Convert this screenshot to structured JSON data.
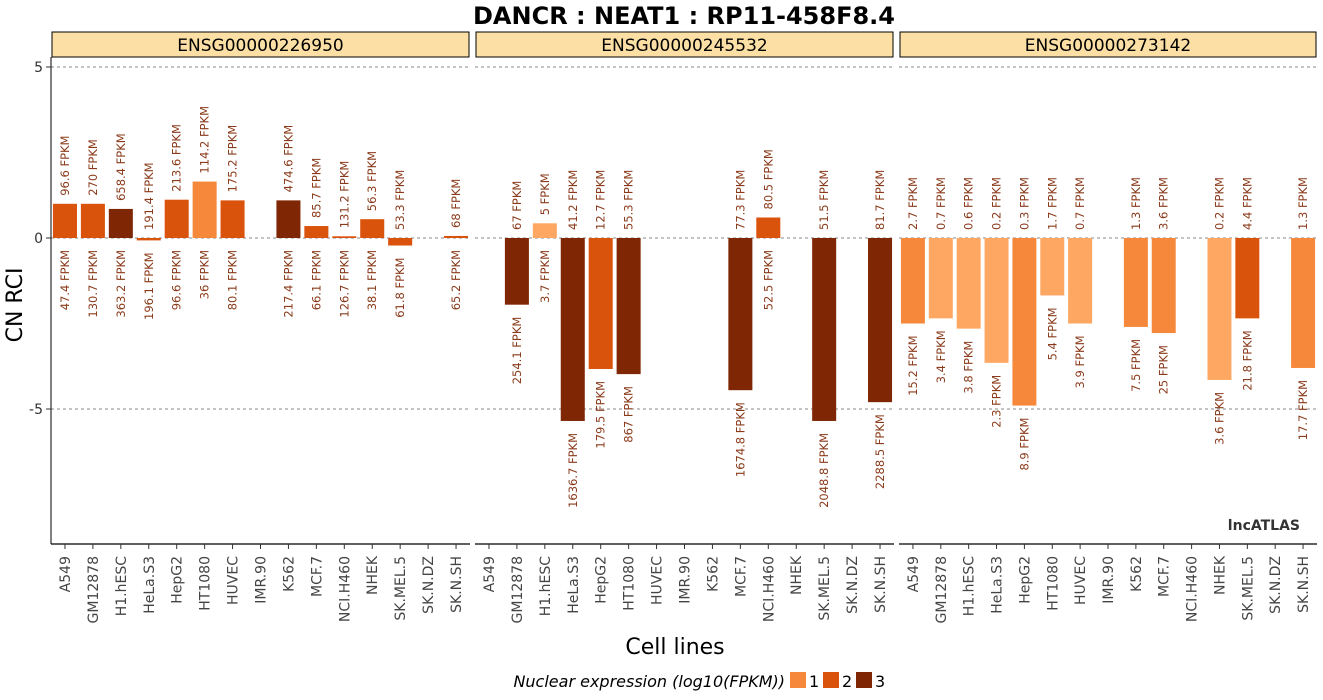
{
  "chart_data": {
    "type": "bar",
    "title": "DANCR : NEAT1 : RP11-458F8.4",
    "xlabel": "Cell lines",
    "ylabel": "CN RCI",
    "ylim": [
      -9,
      6
    ],
    "y_ticks": [
      5,
      0,
      -5
    ],
    "y_tick_labels": [
      "5",
      "0",
      "-5"
    ],
    "reference_lines": [
      5,
      0,
      -5
    ],
    "watermark": "lncATLAS",
    "categories": [
      "A549",
      "GM12878",
      "H1.hESC",
      "HeLa.S3",
      "HepG2",
      "HT1080",
      "HUVEC",
      "IMR.90",
      "K562",
      "MCF.7",
      "NCI.H460",
      "NHEK",
      "SK.MEL.5",
      "SK.N.DZ",
      "SK.N.SH"
    ],
    "colors": {
      "1": "#f5883a",
      "2": "#d9530c",
      "3": "#7f2704",
      "light": "#fda762"
    },
    "legend": {
      "title": "Nuclear expression (log10(FPKM))",
      "position": "bottom",
      "entries": [
        {
          "label": "1",
          "color": "#f5883a"
        },
        {
          "label": "2",
          "color": "#d9530c"
        },
        {
          "label": "3",
          "color": "#7f2704"
        }
      ]
    },
    "panels": [
      {
        "name": "ENSG00000226950",
        "bars": [
          {
            "cell": "A549",
            "value": 1.0,
            "level": "2",
            "top_label": "96.6 FPKM",
            "bottom_label": "47.4 FPKM"
          },
          {
            "cell": "GM12878",
            "value": 1.0,
            "level": "2",
            "top_label": "270 FPKM",
            "bottom_label": "130.7 FPKM"
          },
          {
            "cell": "H1.hESC",
            "value": 0.85,
            "level": "3",
            "top_label": "658.4 FPKM",
            "bottom_label": "363.2 FPKM"
          },
          {
            "cell": "HeLa.S3",
            "value": -0.07,
            "level": "2",
            "top_label": "191.4 FPKM",
            "bottom_label": "196.1 FPKM"
          },
          {
            "cell": "HepG2",
            "value": 1.12,
            "level": "2",
            "top_label": "213.6 FPKM",
            "bottom_label": "96.6 FPKM"
          },
          {
            "cell": "HT1080",
            "value": 1.65,
            "level": "1",
            "top_label": "114.2 FPKM",
            "bottom_label": "36 FPKM"
          },
          {
            "cell": "HUVEC",
            "value": 1.1,
            "level": "2",
            "top_label": "175.2 FPKM",
            "bottom_label": "80.1 FPKM"
          },
          {
            "cell": "IMR.90",
            "value": null
          },
          {
            "cell": "K562",
            "value": 1.1,
            "level": "3",
            "top_label": "474.6 FPKM",
            "bottom_label": "217.4 FPKM"
          },
          {
            "cell": "MCF.7",
            "value": 0.35,
            "level": "2",
            "top_label": "85.7 FPKM",
            "bottom_label": "66.1 FPKM"
          },
          {
            "cell": "NCI.H460",
            "value": 0.05,
            "level": "2",
            "top_label": "131.2 FPKM",
            "bottom_label": "126.7 FPKM"
          },
          {
            "cell": "NHEK",
            "value": 0.55,
            "level": "2",
            "top_label": "56.3 FPKM",
            "bottom_label": "38.1 FPKM"
          },
          {
            "cell": "SK.MEL.5",
            "value": -0.22,
            "level": "2",
            "top_label": "53.3 FPKM",
            "bottom_label": "61.8 FPKM"
          },
          {
            "cell": "SK.N.DZ",
            "value": null
          },
          {
            "cell": "SK.N.SH",
            "value": 0.06,
            "level": "2",
            "top_label": "68 FPKM",
            "bottom_label": "65.2 FPKM"
          }
        ]
      },
      {
        "name": "ENSG00000245532",
        "bars": [
          {
            "cell": "A549",
            "value": null
          },
          {
            "cell": "GM12878",
            "value": -1.95,
            "level": "3",
            "top_label": "67 FPKM",
            "bottom_label": "254.1 FPKM"
          },
          {
            "cell": "H1.hESC",
            "value": 0.43,
            "level": "light",
            "top_label": "5 FPKM",
            "bottom_label": "3.7 FPKM"
          },
          {
            "cell": "HeLa.S3",
            "value": -5.35,
            "level": "3",
            "top_label": "41.2 FPKM",
            "bottom_label": "1636.7 FPKM"
          },
          {
            "cell": "HepG2",
            "value": -3.83,
            "level": "2",
            "top_label": "12.7 FPKM",
            "bottom_label": "179.5 FPKM"
          },
          {
            "cell": "HT1080",
            "value": -3.98,
            "level": "3",
            "top_label": "55.3 FPKM",
            "bottom_label": "867 FPKM"
          },
          {
            "cell": "HUVEC",
            "value": null
          },
          {
            "cell": "IMR.90",
            "value": null
          },
          {
            "cell": "K562",
            "value": null
          },
          {
            "cell": "MCF.7",
            "value": -4.45,
            "level": "3",
            "top_label": "77.3 FPKM",
            "bottom_label": "1674.8 FPKM"
          },
          {
            "cell": "NCI.H460",
            "value": 0.6,
            "level": "2",
            "top_label": "80.5 FPKM",
            "bottom_label": "52.5 FPKM"
          },
          {
            "cell": "NHEK",
            "value": null
          },
          {
            "cell": "SK.MEL.5",
            "value": -5.35,
            "level": "3",
            "top_label": "51.5 FPKM",
            "bottom_label": "2048.8 FPKM"
          },
          {
            "cell": "SK.N.DZ",
            "value": null
          },
          {
            "cell": "SK.N.SH",
            "value": -4.8,
            "level": "3",
            "top_label": "81.7 FPKM",
            "bottom_label": "2288.5 FPKM"
          }
        ]
      },
      {
        "name": "ENSG00000273142",
        "bars": [
          {
            "cell": "A549",
            "value": -2.5,
            "level": "1",
            "top_label": "2.7 FPKM",
            "bottom_label": "15.2 FPKM"
          },
          {
            "cell": "GM12878",
            "value": -2.35,
            "level": "light",
            "top_label": "0.7 FPKM",
            "bottom_label": "3.4 FPKM"
          },
          {
            "cell": "H1.hESC",
            "value": -2.65,
            "level": "light",
            "top_label": "0.6 FPKM",
            "bottom_label": "3.8 FPKM"
          },
          {
            "cell": "HeLa.S3",
            "value": -3.65,
            "level": "light",
            "top_label": "0.2 FPKM",
            "bottom_label": "2.3 FPKM"
          },
          {
            "cell": "HepG2",
            "value": -4.9,
            "level": "1",
            "top_label": "0.3 FPKM",
            "bottom_label": "8.9 FPKM"
          },
          {
            "cell": "HT1080",
            "value": -1.68,
            "level": "light",
            "top_label": "1.7 FPKM",
            "bottom_label": "5.4 FPKM"
          },
          {
            "cell": "HUVEC",
            "value": -2.5,
            "level": "light",
            "top_label": "0.7 FPKM",
            "bottom_label": "3.9 FPKM"
          },
          {
            "cell": "IMR.90",
            "value": null
          },
          {
            "cell": "K562",
            "value": -2.6,
            "level": "1",
            "top_label": "1.3 FPKM",
            "bottom_label": "7.5 FPKM"
          },
          {
            "cell": "MCF.7",
            "value": -2.78,
            "level": "1",
            "top_label": "3.6 FPKM",
            "bottom_label": "25 FPKM"
          },
          {
            "cell": "NCI.H460",
            "value": null
          },
          {
            "cell": "NHEK",
            "value": -4.15,
            "level": "light",
            "top_label": "0.2 FPKM",
            "bottom_label": "3.6 FPKM"
          },
          {
            "cell": "SK.MEL.5",
            "value": -2.35,
            "level": "2",
            "top_label": "4.4 FPKM",
            "bottom_label": "21.8 FPKM"
          },
          {
            "cell": "SK.N.DZ",
            "value": null
          },
          {
            "cell": "SK.N.SH",
            "value": -3.8,
            "level": "1",
            "top_label": "1.3 FPKM",
            "bottom_label": "17.7 FPKM"
          }
        ]
      }
    ]
  }
}
